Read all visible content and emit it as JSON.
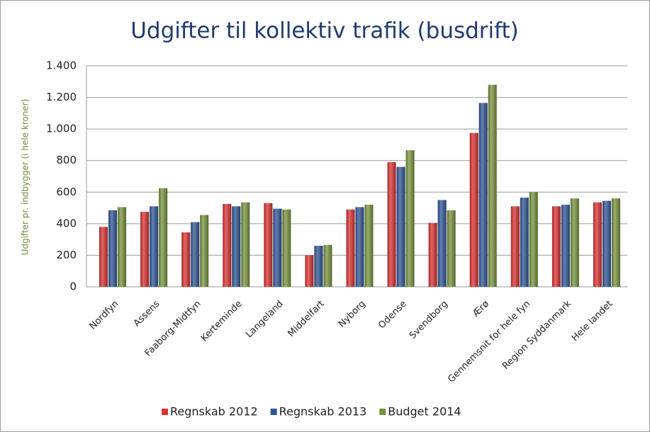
{
  "chart_data": {
    "type": "bar",
    "title": "Udgifter til kollektiv trafik (busdrift)",
    "y_label": "Udgifter pr. indbygger (i hele kroner)",
    "categories": [
      "Nordfyn",
      "Assens",
      "Faaborg-Midtfyn",
      "Kerteminde",
      "Langeland",
      "Middelfart",
      "Nyborg",
      "Odense",
      "Svendborg",
      "Ærø",
      "Gennemsnit for hele fyn",
      "Region Syddanmark",
      "Hele landet"
    ],
    "series": [
      {
        "name": "Regnskab 2012",
        "color": "#d9312f",
        "values": [
          380,
          475,
          345,
          525,
          530,
          200,
          490,
          790,
          405,
          975,
          510,
          510,
          535
        ]
      },
      {
        "name": "Regnskab 2013",
        "color": "#2f5597",
        "values": [
          485,
          510,
          410,
          510,
          495,
          260,
          505,
          760,
          550,
          1165,
          565,
          520,
          545
        ]
      },
      {
        "name": "Budget 2014",
        "color": "#77933c",
        "values": [
          505,
          625,
          455,
          535,
          490,
          265,
          520,
          865,
          485,
          1280,
          600,
          560,
          560
        ]
      }
    ],
    "ylim": [
      0,
      1400
    ],
    "yticks": [
      0,
      200,
      400,
      600,
      800,
      {
        "value": 1000,
        "label": "1.000"
      },
      {
        "value": 1200,
        "label": "1.200"
      },
      {
        "value": 1400,
        "label": "1.400"
      }
    ],
    "grid": true,
    "legend": "bottom"
  }
}
